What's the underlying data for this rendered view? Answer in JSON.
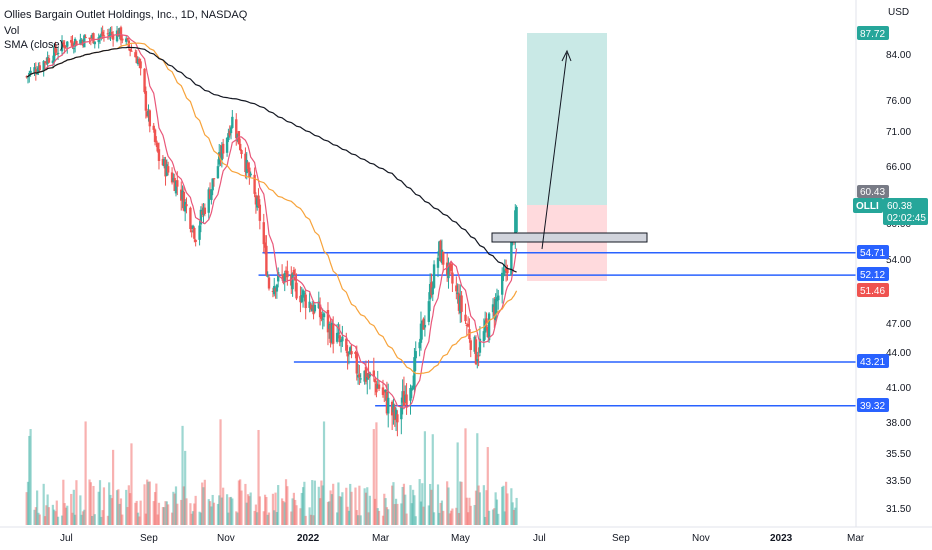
{
  "header": {
    "title": "Ollies Bargain Outlet Holdings, Inc., 1D, NASDAQ",
    "vol_label": "Vol",
    "sma_label": "SMA (close)"
  },
  "price_axis": {
    "currency": "USD",
    "ticks": [
      "84.00",
      "76.00",
      "71.00",
      "66.00",
      "60.00",
      "54.00",
      "47.00",
      "44.00",
      "41.00",
      "38.00",
      "35.50",
      "33.50",
      "31.50"
    ]
  },
  "time_axis": {
    "ticks": [
      "Jul",
      "Sep",
      "Nov",
      "2022",
      "Mar",
      "May",
      "Jul",
      "Sep",
      "Nov",
      "2023",
      "Mar"
    ]
  },
  "badges": {
    "target": "87.72",
    "stop_top": "60.43",
    "symbol": "OLLI",
    "last_price": "60.38",
    "countdown": "02:02:45",
    "level1": "54.71",
    "level2": "52.12",
    "ma_value": "51.46",
    "level3": "43.21",
    "level4": "39.32"
  },
  "colors": {
    "up": "#26a69a",
    "down": "#ef5350",
    "level_line": "#2962ff",
    "sma_slow": "#131722",
    "sma_mid": "#f7a33b",
    "sma_fast": "#e9587a",
    "target_zone": "#b2dfdb",
    "stop_zone": "#ffcdd2"
  },
  "chart_data": {
    "type": "candlestick",
    "symbol": "OLLI",
    "interval": "1D",
    "exchange": "NASDAQ",
    "ylim": [
      30,
      90
    ],
    "horizontal_levels": [
      54.71,
      52.12,
      43.21,
      39.32
    ],
    "position": {
      "entry": 56.5,
      "target": 87.72,
      "stop": 51.5
    },
    "price_path": [
      {
        "date": "2021-06-01",
        "close": 80
      },
      {
        "date": "2021-07-01",
        "close": 86
      },
      {
        "date": "2021-08-10",
        "close": 88
      },
      {
        "date": "2021-08-25",
        "close": 83
      },
      {
        "date": "2021-09-01",
        "close": 74
      },
      {
        "date": "2021-09-10",
        "close": 67
      },
      {
        "date": "2021-09-25",
        "close": 63
      },
      {
        "date": "2021-10-08",
        "close": 57
      },
      {
        "date": "2021-10-20",
        "close": 63
      },
      {
        "date": "2021-11-05",
        "close": 73
      },
      {
        "date": "2021-11-20",
        "close": 63
      },
      {
        "date": "2021-11-26",
        "close": 59
      },
      {
        "date": "2021-12-03",
        "close": 51
      },
      {
        "date": "2021-12-15",
        "close": 52
      },
      {
        "date": "2022-01-10",
        "close": 48
      },
      {
        "date": "2022-02-05",
        "close": 43
      },
      {
        "date": "2022-02-25",
        "close": 41
      },
      {
        "date": "2022-03-10",
        "close": 38
      },
      {
        "date": "2022-03-25",
        "close": 43
      },
      {
        "date": "2022-04-12",
        "close": 55
      },
      {
        "date": "2022-04-25",
        "close": 50
      },
      {
        "date": "2022-05-10",
        "close": 44
      },
      {
        "date": "2022-05-20",
        "close": 47
      },
      {
        "date": "2022-06-01",
        "close": 52
      },
      {
        "date": "2022-06-08",
        "close": 57
      },
      {
        "date": "2022-06-10",
        "close": 60.38
      }
    ]
  }
}
